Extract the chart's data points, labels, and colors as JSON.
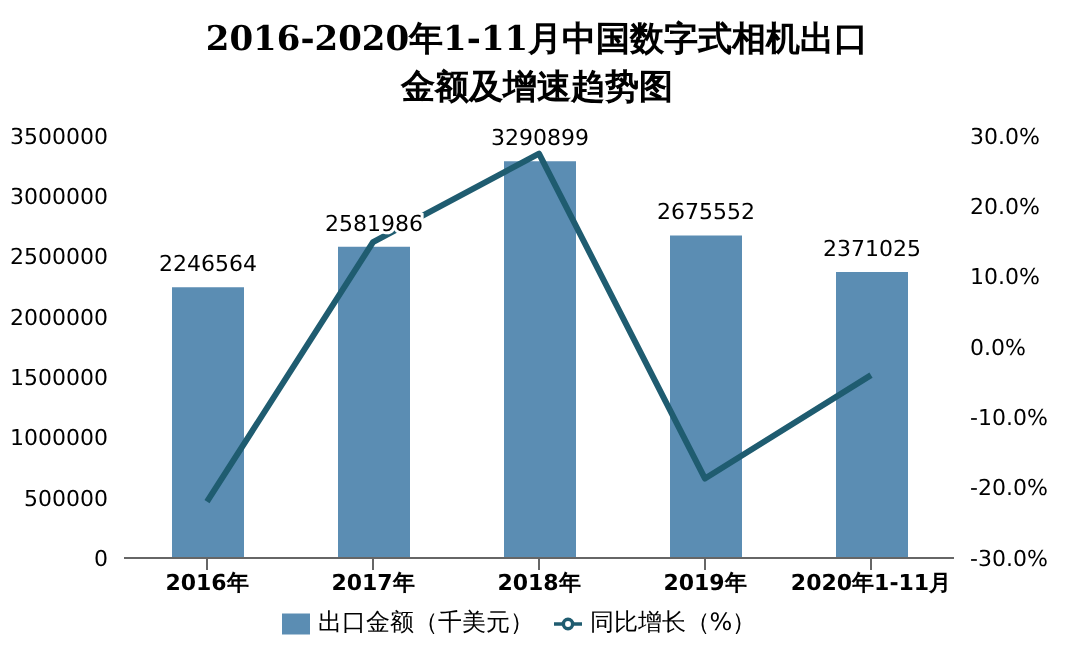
{
  "chart_data": {
    "type": "bar",
    "title": "2016-2020年1-11月中国数字式相机出口金额及增速趋势图",
    "categories": [
      "2016年",
      "2017年",
      "2018年",
      "2019年",
      "2020年1-11月"
    ],
    "series": [
      {
        "name": "出口金额（千美元）",
        "color": "#5b8db3",
        "values": [
          2246564,
          2581986,
          3290899,
          2675552,
          2371025
        ],
        "value_labels": [
          "2246564",
          "2581986",
          "3290899",
          "2675552",
          "2371025"
        ]
      },
      {
        "name": "同比增长（%）",
        "type": "line",
        "axis": "y2",
        "color": "#1f5c70",
        "values": [
          -22,
          14.9,
          27.5,
          -18.7,
          -4
        ]
      }
    ],
    "ylim": [
      0,
      3500000
    ],
    "yticks": [
      0,
      500000,
      1000000,
      1500000,
      2000000,
      2500000,
      3000000,
      3500000
    ],
    "y2lim": [
      -30,
      30
    ],
    "y2ticks": [
      {
        "value": -30,
        "label": "-30.0%"
      },
      {
        "value": -20,
        "label": "-20.0%"
      },
      {
        "value": -10,
        "label": "-10.0%"
      },
      {
        "value": 0,
        "label": "0.0%"
      },
      {
        "value": 10,
        "label": "10.0%"
      },
      {
        "value": 20,
        "label": "20.0%"
      },
      {
        "value": 30,
        "label": "30.0%"
      }
    ],
    "legend": "bottom",
    "grid": false,
    "marker": "none",
    "line_style": "solid"
  }
}
